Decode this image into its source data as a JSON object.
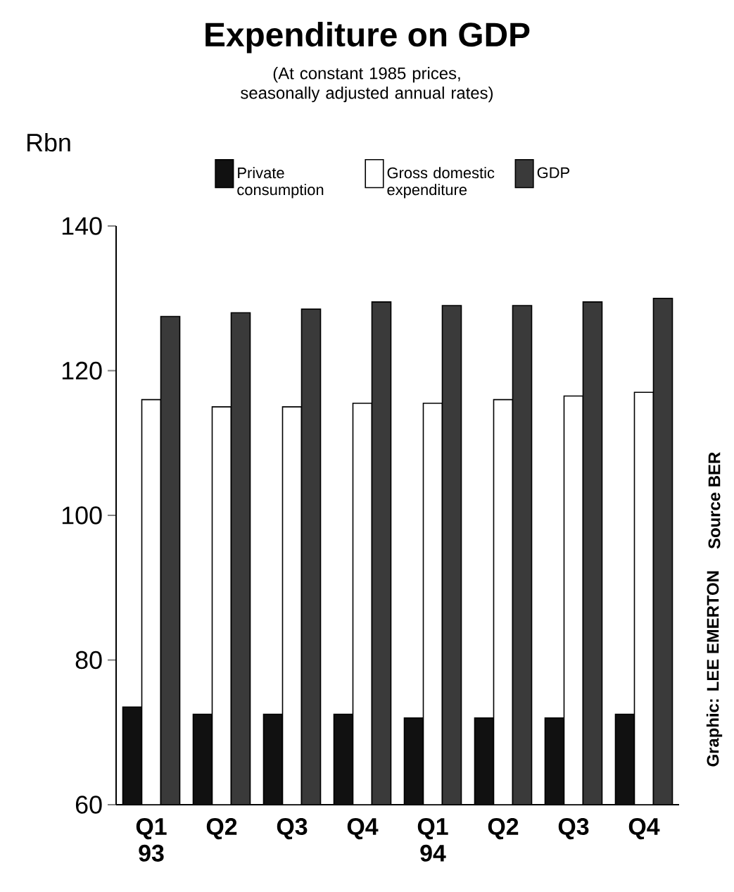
{
  "chart_data": {
    "type": "bar",
    "title": "Expenditure on GDP",
    "subtitle": "(At constant 1985 prices, seasonally adjusted annual rates)",
    "ylabel": "Rbn",
    "categories": [
      "Q1 93",
      "Q2",
      "Q3",
      "Q4",
      "Q1 94",
      "Q2",
      "Q3",
      "Q4"
    ],
    "series": [
      {
        "name": "Private consumption",
        "color": "#111111",
        "values": [
          73.5,
          72.5,
          72.5,
          72.5,
          72,
          72,
          72,
          72.5
        ]
      },
      {
        "name": "Gross domestic expenditure",
        "color": "#ffffff",
        "values": [
          116,
          115,
          115,
          115.5,
          115.5,
          116,
          116.5,
          117
        ]
      },
      {
        "name": "GDP",
        "color": "#3a3a3a",
        "values": [
          127.5,
          128,
          128.5,
          129.5,
          129,
          129,
          129.5,
          130
        ]
      }
    ],
    "ylim": [
      60,
      140
    ],
    "yticks": [
      60,
      80,
      100,
      120,
      140
    ],
    "legend": "top",
    "annotations": [
      "Source BER",
      "Graphic: LEE EMERTON"
    ]
  }
}
